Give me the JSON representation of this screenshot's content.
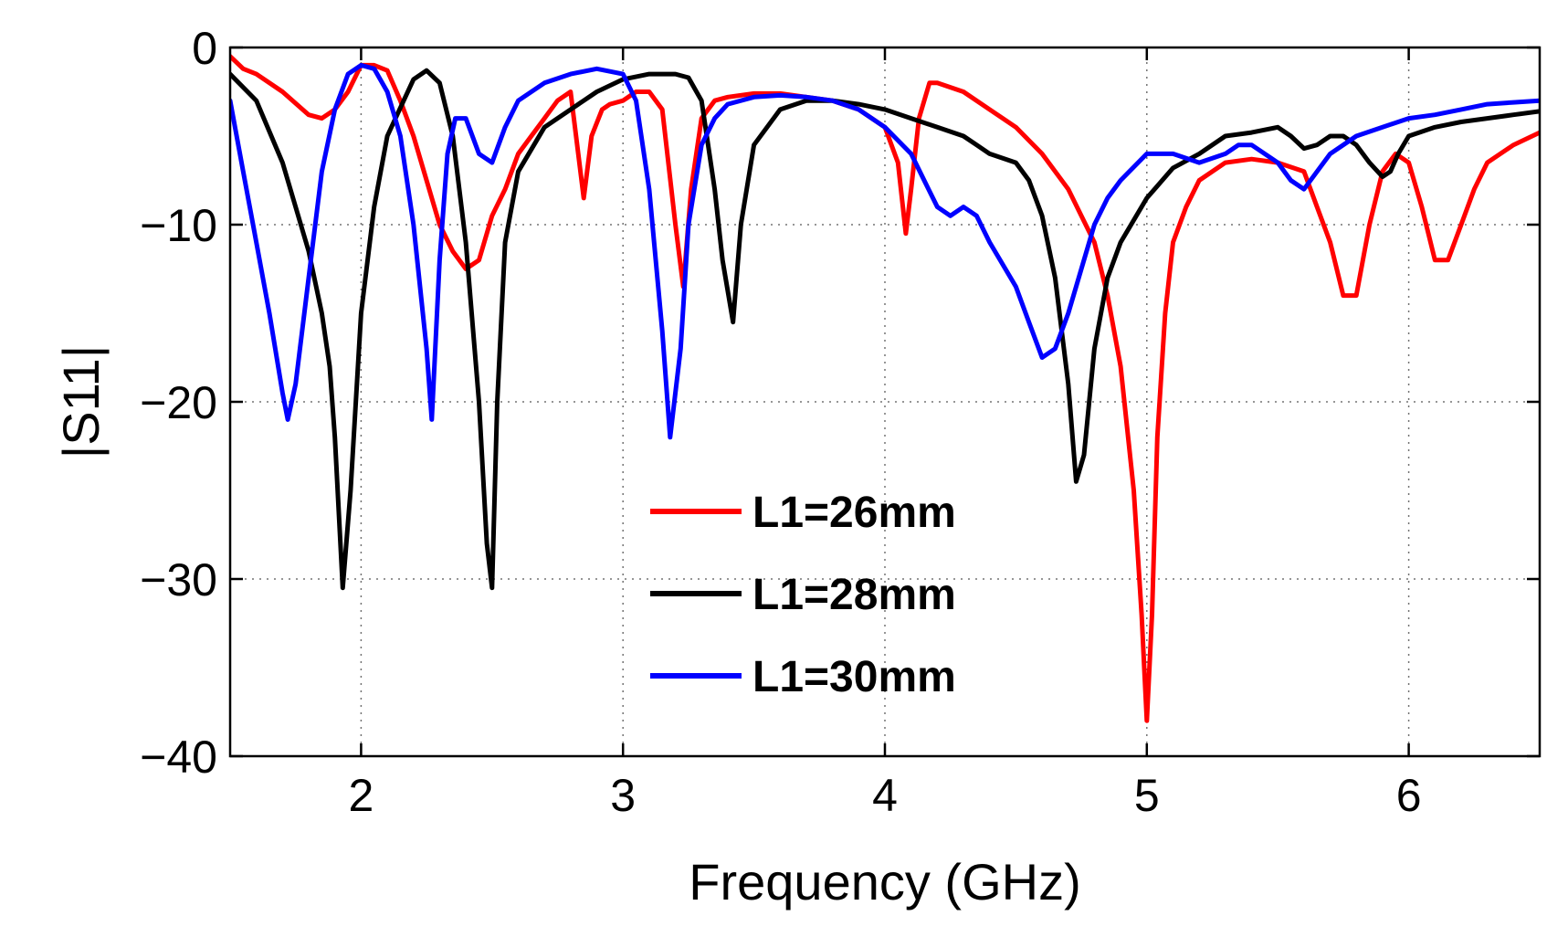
{
  "chart_data": {
    "type": "line",
    "title": "",
    "xlabel": "Frequency (GHz)",
    "ylabel": "|S11|",
    "xlim": [
      1.5,
      6.5
    ],
    "ylim": [
      -40,
      0
    ],
    "xticks": [
      2,
      3,
      4,
      5,
      6
    ],
    "yticks": [
      0,
      -10,
      -20,
      -30,
      -40
    ],
    "xtick_labels": [
      "2",
      "3",
      "4",
      "5",
      "6"
    ],
    "ytick_labels": [
      "0",
      "−10",
      "−20",
      "−30",
      "−40"
    ],
    "grid": true,
    "legend_position": "center-bottom",
    "series": [
      {
        "name": "L1=26mm",
        "color": "#ff0000",
        "x": [
          1.5,
          1.55,
          1.6,
          1.7,
          1.8,
          1.85,
          1.9,
          1.95,
          2.0,
          2.05,
          2.1,
          2.15,
          2.2,
          2.25,
          2.3,
          2.35,
          2.4,
          2.45,
          2.5,
          2.55,
          2.6,
          2.65,
          2.7,
          2.75,
          2.8,
          2.85,
          2.88,
          2.92,
          2.95,
          3.0,
          3.05,
          3.1,
          3.15,
          3.2,
          3.23,
          3.26,
          3.3,
          3.35,
          3.4,
          3.5,
          3.6,
          3.7,
          3.8,
          3.9,
          4.0,
          4.05,
          4.08,
          4.1,
          4.13,
          4.17,
          4.2,
          4.3,
          4.4,
          4.5,
          4.6,
          4.7,
          4.8,
          4.85,
          4.9,
          4.95,
          4.98,
          5.0,
          5.02,
          5.04,
          5.07,
          5.1,
          5.15,
          5.2,
          5.3,
          5.4,
          5.5,
          5.6,
          5.65,
          5.7,
          5.75,
          5.8,
          5.85,
          5.9,
          5.95,
          6.0,
          6.05,
          6.1,
          6.15,
          6.2,
          6.25,
          6.3,
          6.4,
          6.5
        ],
        "values": [
          -0.5,
          -1.2,
          -1.5,
          -2.5,
          -3.8,
          -4.0,
          -3.5,
          -2.5,
          -1.0,
          -1.0,
          -1.3,
          -3.0,
          -5.0,
          -7.5,
          -10.0,
          -11.5,
          -12.5,
          -12.0,
          -9.5,
          -8.0,
          -6.0,
          -5.0,
          -4.0,
          -3.0,
          -2.5,
          -8.5,
          -5.0,
          -3.5,
          -3.2,
          -3.0,
          -2.5,
          -2.5,
          -3.5,
          -10.0,
          -13.5,
          -8.0,
          -4.0,
          -3.0,
          -2.8,
          -2.6,
          -2.6,
          -2.8,
          -3.0,
          -3.5,
          -4.5,
          -6.5,
          -10.5,
          -8.0,
          -4.0,
          -2.0,
          -2.0,
          -2.5,
          -3.5,
          -4.5,
          -6.0,
          -8.0,
          -11.0,
          -14.0,
          -18.0,
          -25.0,
          -32.0,
          -38.0,
          -32.0,
          -22.0,
          -15.0,
          -11.0,
          -9.0,
          -7.5,
          -6.5,
          -6.3,
          -6.5,
          -7.0,
          -9.0,
          -11.0,
          -14.0,
          -14.0,
          -10.0,
          -7.0,
          -6.0,
          -6.5,
          -9.0,
          -12.0,
          -12.0,
          -10.0,
          -8.0,
          -6.5,
          -5.5,
          -4.8
        ]
      },
      {
        "name": "L1=28mm",
        "color": "#000000",
        "x": [
          1.5,
          1.6,
          1.7,
          1.75,
          1.8,
          1.85,
          1.88,
          1.9,
          1.93,
          1.96,
          2.0,
          2.05,
          2.1,
          2.2,
          2.25,
          2.3,
          2.35,
          2.4,
          2.45,
          2.48,
          2.5,
          2.52,
          2.55,
          2.6,
          2.7,
          2.8,
          2.9,
          3.0,
          3.1,
          3.2,
          3.25,
          3.3,
          3.35,
          3.38,
          3.42,
          3.45,
          3.5,
          3.6,
          3.7,
          3.8,
          3.9,
          4.0,
          4.1,
          4.2,
          4.3,
          4.35,
          4.4,
          4.5,
          4.55,
          4.6,
          4.65,
          4.7,
          4.73,
          4.76,
          4.8,
          4.85,
          4.9,
          5.0,
          5.1,
          5.2,
          5.3,
          5.4,
          5.5,
          5.55,
          5.6,
          5.65,
          5.7,
          5.75,
          5.8,
          5.85,
          5.9,
          5.93,
          5.96,
          6.0,
          6.1,
          6.2,
          6.3,
          6.4,
          6.5
        ],
        "values": [
          -1.5,
          -3.0,
          -6.5,
          -9.0,
          -11.5,
          -15.0,
          -18.0,
          -22.0,
          -30.5,
          -25.0,
          -15.0,
          -9.0,
          -5.0,
          -1.8,
          -1.3,
          -2.0,
          -5.0,
          -11.0,
          -20.0,
          -28.0,
          -30.5,
          -20.0,
          -11.0,
          -7.0,
          -4.5,
          -3.5,
          -2.5,
          -1.8,
          -1.5,
          -1.5,
          -1.7,
          -3.0,
          -8.0,
          -12.0,
          -15.5,
          -10.0,
          -5.5,
          -3.5,
          -3.0,
          -3.0,
          -3.2,
          -3.5,
          -4.0,
          -4.5,
          -5.0,
          -5.5,
          -6.0,
          -6.5,
          -7.5,
          -9.5,
          -13.0,
          -19.0,
          -24.5,
          -23.0,
          -17.0,
          -13.0,
          -11.0,
          -8.5,
          -6.8,
          -6.0,
          -5.0,
          -4.8,
          -4.5,
          -5.0,
          -5.7,
          -5.5,
          -5.0,
          -5.0,
          -5.5,
          -6.5,
          -7.3,
          -7.0,
          -6.0,
          -5.0,
          -4.5,
          -4.2,
          -4.0,
          -3.8,
          -3.6
        ]
      },
      {
        "name": "L1=30mm",
        "color": "#0000ff",
        "x": [
          1.5,
          1.55,
          1.6,
          1.65,
          1.7,
          1.72,
          1.75,
          1.8,
          1.85,
          1.9,
          1.95,
          2.0,
          2.05,
          2.1,
          2.15,
          2.2,
          2.25,
          2.27,
          2.3,
          2.33,
          2.36,
          2.4,
          2.45,
          2.5,
          2.55,
          2.6,
          2.7,
          2.8,
          2.9,
          3.0,
          3.05,
          3.1,
          3.15,
          3.18,
          3.22,
          3.25,
          3.3,
          3.35,
          3.4,
          3.5,
          3.6,
          3.7,
          3.8,
          3.9,
          4.0,
          4.1,
          4.15,
          4.2,
          4.25,
          4.3,
          4.35,
          4.4,
          4.5,
          4.55,
          4.6,
          4.65,
          4.7,
          4.75,
          4.8,
          4.85,
          4.9,
          5.0,
          5.1,
          5.2,
          5.3,
          5.35,
          5.4,
          5.5,
          5.55,
          5.6,
          5.65,
          5.7,
          5.8,
          5.9,
          6.0,
          6.1,
          6.2,
          6.3,
          6.4,
          6.5
        ],
        "values": [
          -3.0,
          -7.0,
          -11.0,
          -15.0,
          -19.5,
          -21.0,
          -19.0,
          -13.0,
          -7.0,
          -3.5,
          -1.5,
          -1.0,
          -1.2,
          -2.5,
          -5.0,
          -10.0,
          -17.0,
          -21.0,
          -12.0,
          -6.0,
          -4.0,
          -4.0,
          -6.0,
          -6.5,
          -4.5,
          -3.0,
          -2.0,
          -1.5,
          -1.2,
          -1.5,
          -3.0,
          -8.0,
          -16.0,
          -22.0,
          -17.0,
          -10.0,
          -5.5,
          -4.0,
          -3.2,
          -2.8,
          -2.7,
          -2.8,
          -3.0,
          -3.5,
          -4.5,
          -6.0,
          -7.5,
          -9.0,
          -9.5,
          -9.0,
          -9.5,
          -11.0,
          -13.5,
          -15.5,
          -17.5,
          -17.0,
          -15.0,
          -12.5,
          -10.0,
          -8.5,
          -7.5,
          -6.0,
          -6.0,
          -6.5,
          -6.0,
          -5.5,
          -5.5,
          -6.5,
          -7.5,
          -8.0,
          -7.0,
          -6.0,
          -5.0,
          -4.5,
          -4.0,
          -3.8,
          -3.5,
          -3.2,
          -3.1,
          -3.0
        ]
      }
    ]
  }
}
